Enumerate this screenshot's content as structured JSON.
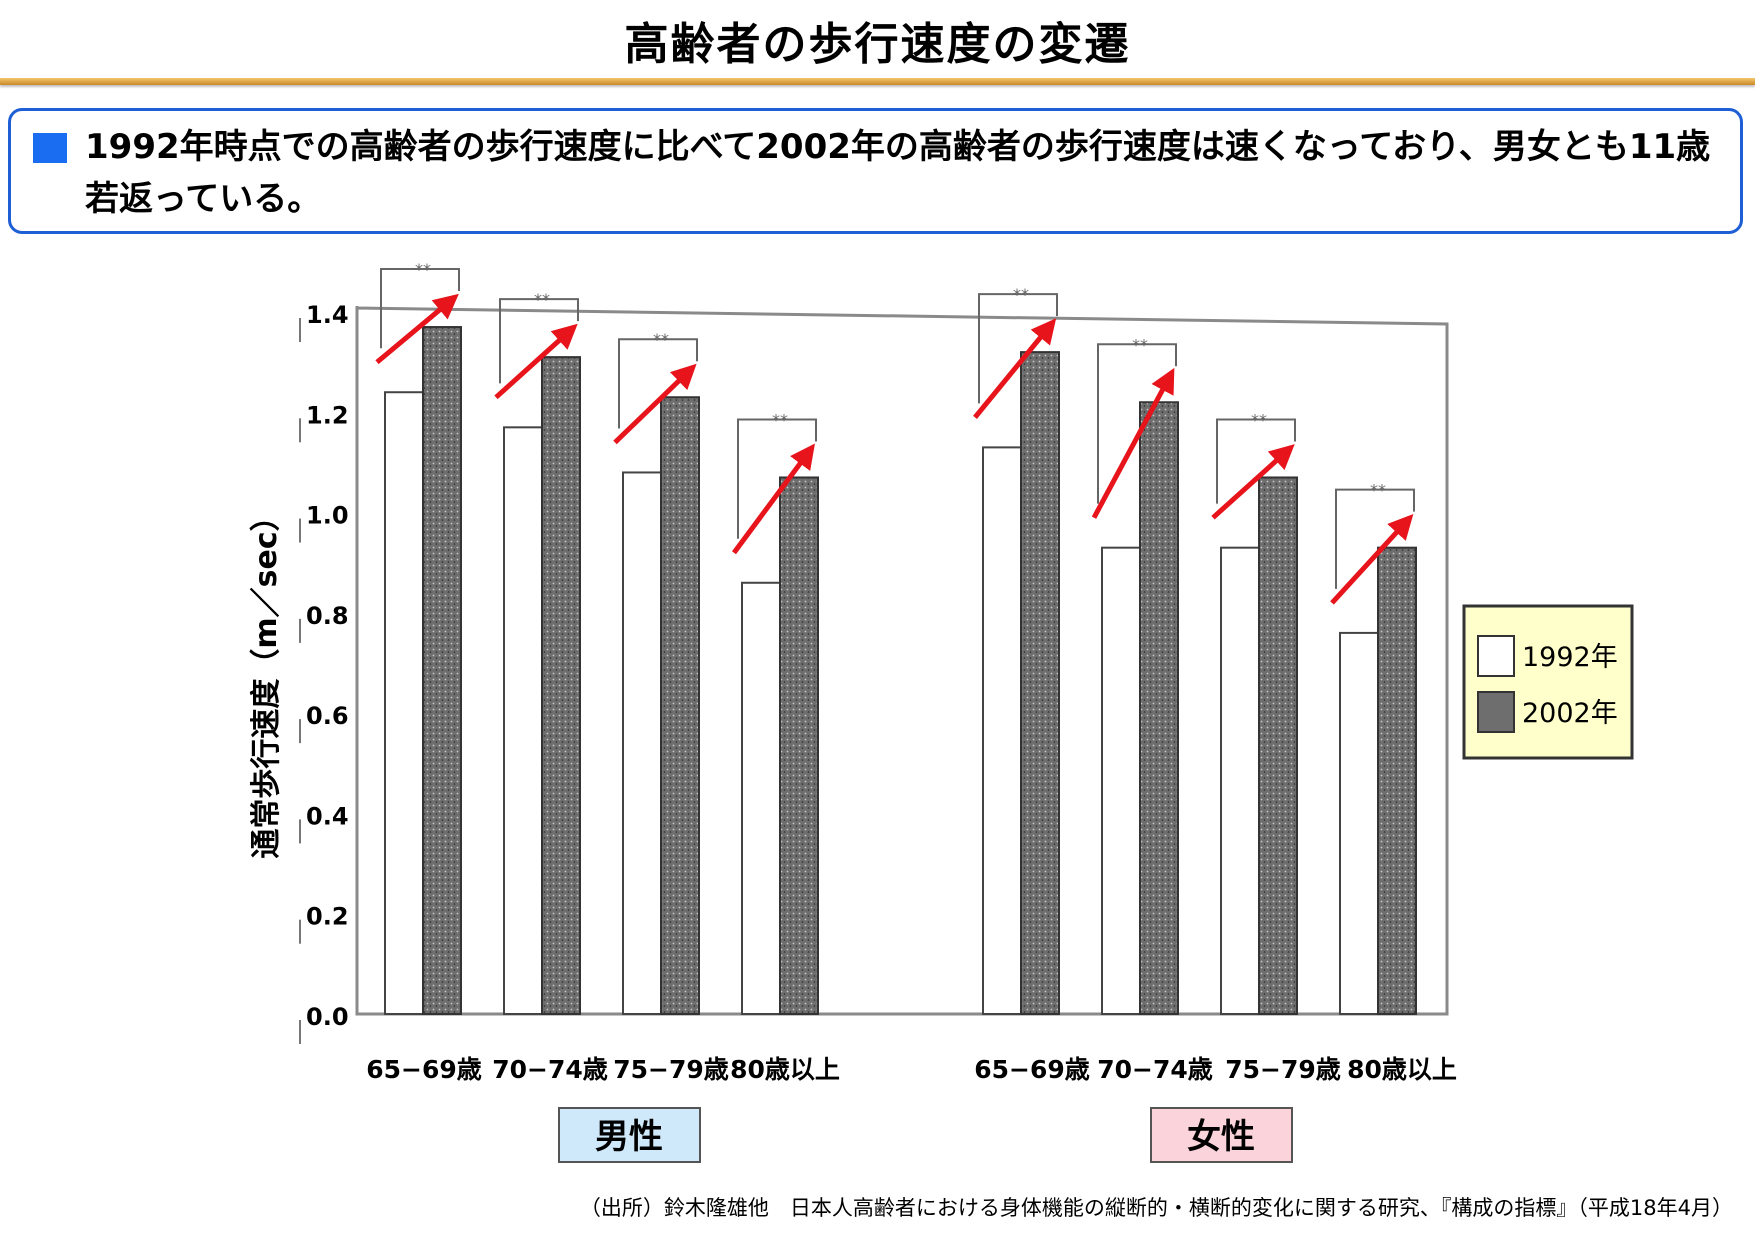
{
  "page": {
    "title": "高齢者の歩行速度の変遷",
    "summary": "1992年時点での高齢者の歩行速度に比べて2002年の高齢者の歩行速度は速くなっており、男女とも11歳若返っている。",
    "source": "（出所）鈴木隆雄他　日本人高齢者における身体機能の縦断的・横断的変化に関する研究、『構成の指標』（平成18年4月）"
  },
  "colors": {
    "bar_1992": "#ffffff",
    "bar_2002": "#6e6e6e",
    "arrow": "#e8141b",
    "legend_bg": "#ffffcc",
    "male_box": "#cfe9fb",
    "female_box": "#fbd3da"
  },
  "chart_data": {
    "type": "bar",
    "ylabel": "通常歩行速度（m／sec）",
    "ylim": [
      0,
      1.4
    ],
    "ytick_labels": [
      "0.0",
      "0.2",
      "0.4",
      "0.6",
      "0.8",
      "1.0",
      "1.2",
      "1.4"
    ],
    "ytick_values": [
      0,
      0.2,
      0.4,
      0.6,
      0.8,
      1.0,
      1.2,
      1.4
    ],
    "significance_mark": "**",
    "legend": {
      "position": "right",
      "entries": [
        "1992年",
        "2002年"
      ]
    },
    "groups": [
      {
        "name": "男性",
        "categories": [
          "65−69歳",
          "70−74歳",
          "75−79歳",
          "80歳以上"
        ],
        "series": [
          {
            "name": "1992年",
            "values": [
              1.24,
              1.17,
              1.08,
              0.86
            ]
          },
          {
            "name": "2002年",
            "values": [
              1.37,
              1.31,
              1.23,
              1.07
            ]
          }
        ]
      },
      {
        "name": "女性",
        "categories": [
          "65−69歳",
          "70−74歳",
          "75−79歳",
          "80歳以上"
        ],
        "series": [
          {
            "name": "1992年",
            "values": [
              1.13,
              0.93,
              0.93,
              0.76
            ]
          },
          {
            "name": "2002年",
            "values": [
              1.32,
              1.22,
              1.07,
              0.93
            ]
          }
        ]
      }
    ]
  }
}
